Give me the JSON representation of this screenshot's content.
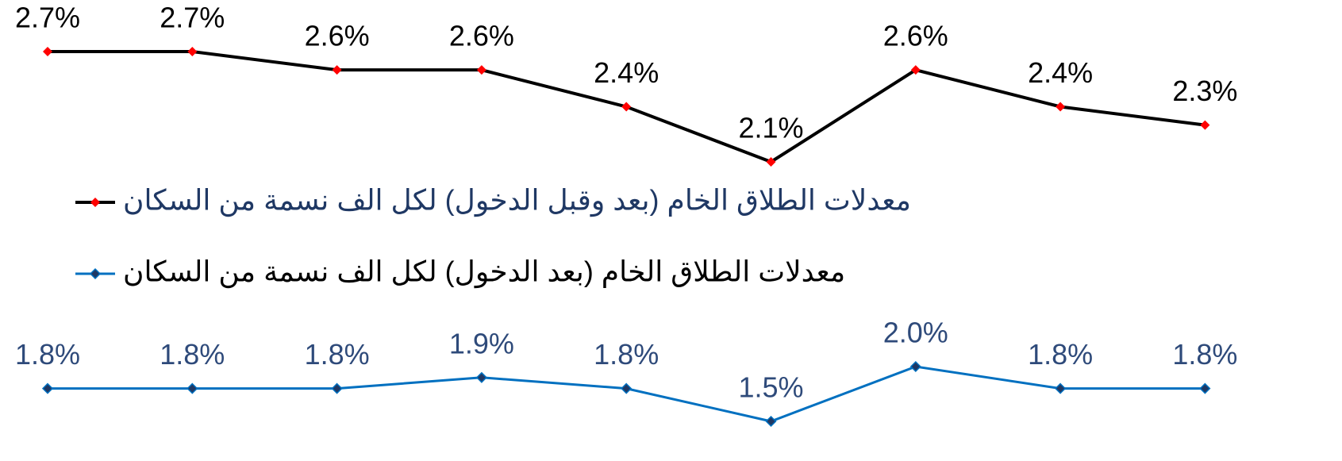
{
  "chart_data": {
    "type": "line",
    "series": [
      {
        "name": "معدلات الطلاق الخام (بعد وقبل الدخول) لكل الف نسمة من السكان",
        "color": "#000000",
        "marker_color": "#ff0000",
        "label_color": "#000000",
        "legend_color": "#1f3864",
        "values": [
          2.7,
          2.7,
          2.6,
          2.6,
          2.4,
          2.1,
          2.6,
          2.4,
          2.3
        ],
        "value_labels": [
          "2.7%",
          "2.7%",
          "2.6%",
          "2.6%",
          "2.4%",
          "2.1%",
          "2.6%",
          "2.4%",
          "2.3%"
        ]
      },
      {
        "name": "معدلات الطلاق الخام (بعد الدخول) لكل الف نسمة من السكان",
        "color": "#0070c0",
        "marker_color": "#1f3864",
        "label_color": "#2e4a7a",
        "legend_color": "#000000",
        "values": [
          1.8,
          1.8,
          1.8,
          1.9,
          1.8,
          1.5,
          2.0,
          1.8,
          1.8
        ],
        "value_labels": [
          "1.8%",
          "1.8%",
          "1.8%",
          "1.9%",
          "1.8%",
          "1.5%",
          "2.0%",
          "1.8%",
          "1.8%"
        ]
      }
    ]
  }
}
